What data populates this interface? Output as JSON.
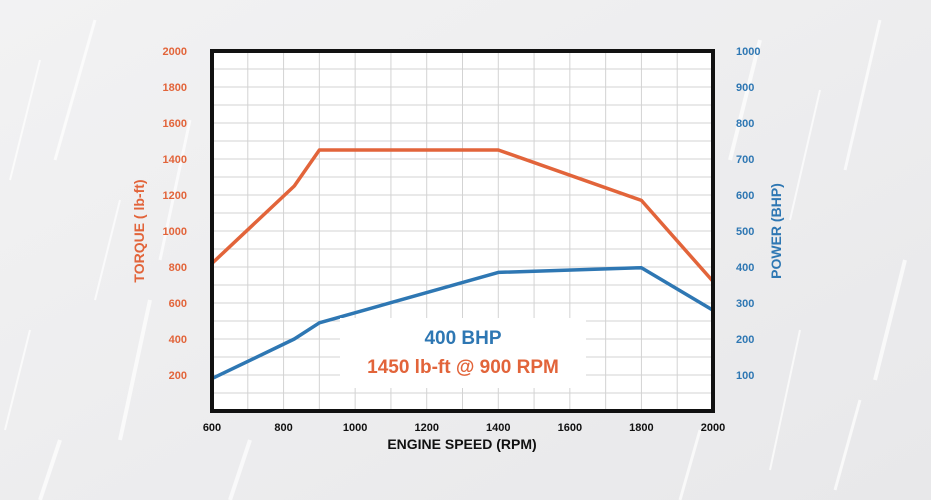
{
  "chart_data": {
    "type": "line",
    "title": "",
    "xlabel": "ENGINE SPEED (RPM)",
    "ylabel_left": "TORQUE ( lb-ft)",
    "ylabel_right": "POWER (BHP)",
    "xlim": [
      600,
      2000
    ],
    "ylim_left": [
      0,
      2000
    ],
    "ylim_right": [
      0,
      1000
    ],
    "x_ticks": [
      "600",
      "800",
      "1000",
      "1200",
      "1400",
      "1600",
      "1800",
      "2000"
    ],
    "y_left_ticks": [
      "200",
      "400",
      "600",
      "800",
      "1000",
      "1200",
      "1400",
      "1600",
      "1800",
      "2000"
    ],
    "y_right_ticks": [
      "100",
      "200",
      "300",
      "400",
      "500",
      "600",
      "700",
      "800",
      "900",
      "1000"
    ],
    "grid": true,
    "series": [
      {
        "axis": "left",
        "color": "#e2643a",
        "points": [
          [
            600,
            820
          ],
          [
            830,
            1250
          ],
          [
            900,
            1450
          ],
          [
            1400,
            1450
          ],
          [
            1800,
            1170
          ],
          [
            2000,
            720
          ]
        ]
      },
      {
        "axis": "right",
        "color": "#2e77b3",
        "points": [
          [
            600,
            90
          ],
          [
            830,
            200
          ],
          [
            900,
            245
          ],
          [
            1400,
            385
          ],
          [
            1800,
            398
          ],
          [
            2000,
            280
          ]
        ]
      }
    ],
    "annotations": {
      "power": "400 BHP",
      "torque": "1450 lb-ft @ 900 RPM"
    }
  }
}
